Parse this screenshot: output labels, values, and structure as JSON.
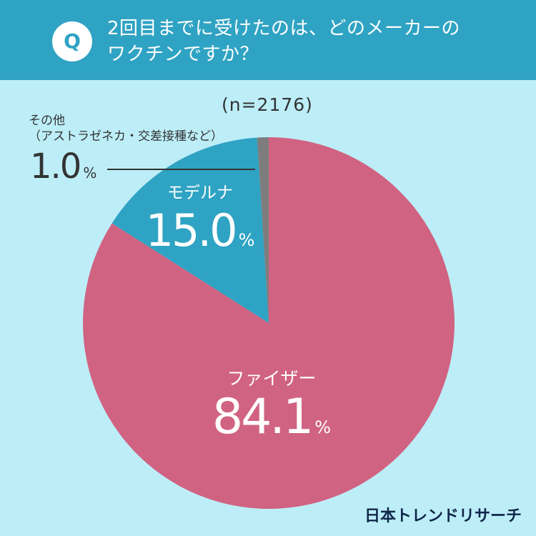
{
  "header": {
    "badge": "Q",
    "question_line1": "2回目までに受けたのは、どのメーカーの",
    "question_line2": "ワクチンですか？"
  },
  "sample_size": "(n=2176)",
  "brand": "日本トレンドリサーチ",
  "colors": {
    "background": "#bdeef8",
    "header": "#2fa3c3",
    "pfizer": "#d16382",
    "moderna": "#2fa3c3",
    "other": "#7d7d7d"
  },
  "labels": {
    "other_name": "その他",
    "other_sub": "（アストラゼネカ・交差接種など）",
    "other_value": "1.0",
    "moderna_name": "モデルナ",
    "moderna_value": "15.0",
    "pfizer_name": "ファイザー",
    "pfizer_value": "84.1",
    "unit": "%"
  },
  "chart_data": {
    "type": "pie",
    "categories": [
      "ファイザー",
      "モデルナ",
      "その他（アストラゼネカ・交差接種など）"
    ],
    "values": [
      84.1,
      15.0,
      1.0
    ],
    "unit": "%",
    "title": "2回目までに受けたのは、どのメーカーのワクチンですか？",
    "annotation": "(n=2176)"
  }
}
